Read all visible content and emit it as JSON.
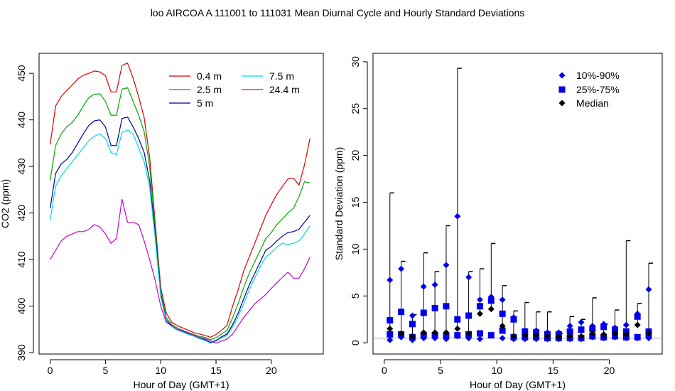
{
  "title": "loo   AIRCOA A   111001 to 111031   Mean Diurnal Cycle and Hourly Standard Deviations",
  "chart_data": [
    {
      "type": "line",
      "xlabel": "Hour of Day (GMT+1)",
      "ylabel": "CO2 (ppm)",
      "xlim": [
        -1.0,
        24.7
      ],
      "ylim": [
        389.7,
        454.3
      ],
      "xticks": [
        0,
        5,
        10,
        15,
        20
      ],
      "yticks": [
        390,
        400,
        410,
        420,
        430,
        440,
        450
      ],
      "legend_position": "top-right",
      "series": [
        {
          "name": "0.4 m",
          "color": "#dd0000",
          "x": [
            0,
            0.5,
            1,
            1.5,
            2,
            2.5,
            3,
            3.5,
            4,
            4.5,
            5,
            5.5,
            6,
            6.5,
            7,
            7.5,
            8,
            8.5,
            9,
            9.5,
            10,
            10.5,
            11,
            11.5,
            12,
            12.5,
            13,
            13.5,
            14,
            14.5,
            15,
            15.5,
            16,
            16.5,
            17,
            17.5,
            18,
            18.5,
            19,
            19.5,
            20,
            20.5,
            21,
            21.5,
            22,
            22.5,
            23,
            23.5
          ],
          "y": [
            434.7,
            443.0,
            445.0,
            446.3,
            447.5,
            448.8,
            449.6,
            450.0,
            450.5,
            450.3,
            449.5,
            446.0,
            446.0,
            451.7,
            452.2,
            449.0,
            445.0,
            440.5,
            432.0,
            418.0,
            404.0,
            398.5,
            396.5,
            395.8,
            395.3,
            394.8,
            394.3,
            394.0,
            393.7,
            393.3,
            393.9,
            394.8,
            395.9,
            400.0,
            403.5,
            407.5,
            410.5,
            413.5,
            416.5,
            419.5,
            421.8,
            424.0,
            425.7,
            427.3,
            427.5,
            426.0,
            430.3,
            436.0
          ]
        },
        {
          "name": "2.5 m",
          "color": "#00aa00",
          "x": [
            0,
            0.5,
            1,
            1.5,
            2,
            2.5,
            3,
            3.5,
            4,
            4.5,
            5,
            5.5,
            6,
            6.5,
            7,
            7.5,
            8,
            8.5,
            9,
            9.5,
            10,
            10.5,
            11,
            11.5,
            12,
            12.5,
            13,
            13.5,
            14,
            14.5,
            15,
            15.5,
            16,
            16.5,
            17,
            17.5,
            18,
            18.5,
            19,
            19.5,
            20,
            20.5,
            21,
            21.5,
            22,
            22.5,
            23,
            23.5
          ],
          "y": [
            427.0,
            434.5,
            437.0,
            438.5,
            439.5,
            441.0,
            443.0,
            444.8,
            445.5,
            445.6,
            444.0,
            441.0,
            441.0,
            446.6,
            446.9,
            444.0,
            441.0,
            437.5,
            430.0,
            417.0,
            403.0,
            397.5,
            396.0,
            395.3,
            394.8,
            394.3,
            393.9,
            393.5,
            393.3,
            392.8,
            393.2,
            394.0,
            394.8,
            397.5,
            400.5,
            404.0,
            407.0,
            409.5,
            412.0,
            414.5,
            415.8,
            417.5,
            418.7,
            420.0,
            421.0,
            423.5,
            426.7,
            426.5
          ]
        },
        {
          "name": "5 m",
          "color": "#000099",
          "x": [
            0,
            0.5,
            1,
            1.5,
            2,
            2.5,
            3,
            3.5,
            4,
            4.5,
            5,
            5.5,
            6,
            6.5,
            7,
            7.5,
            8,
            8.5,
            9,
            9.5,
            10,
            10.5,
            11,
            11.5,
            12,
            12.5,
            13,
            13.5,
            14,
            14.5,
            15,
            15.5,
            16,
            16.5,
            17,
            17.5,
            18,
            18.5,
            19,
            19.5,
            20,
            20.5,
            21,
            21.5,
            22,
            22.5,
            23,
            23.5
          ],
          "y": [
            421.0,
            428.5,
            430.5,
            431.5,
            433.0,
            435.0,
            437.0,
            438.8,
            439.8,
            440.0,
            438.5,
            434.5,
            434.5,
            440.3,
            440.6,
            438.5,
            436.0,
            433.0,
            427.0,
            415.5,
            402.5,
            397.0,
            395.8,
            395.0,
            394.6,
            394.1,
            393.7,
            393.2,
            392.8,
            392.2,
            392.6,
            393.4,
            394.0,
            396.0,
            398.5,
            401.5,
            404.5,
            407.0,
            409.5,
            412.0,
            412.8,
            414.0,
            415.0,
            415.8,
            416.0,
            416.5,
            418.0,
            419.5
          ]
        },
        {
          "name": "7.5 m",
          "color": "#00dddd",
          "x": [
            0,
            0.5,
            1,
            1.5,
            2,
            2.5,
            3,
            3.5,
            4,
            4.5,
            5,
            5.5,
            6,
            6.5,
            7,
            7.5,
            8,
            8.5,
            9,
            9.5,
            10,
            10.5,
            11,
            11.5,
            12,
            12.5,
            13,
            13.5,
            14,
            14.5,
            15,
            15.5,
            16,
            16.5,
            17,
            17.5,
            18,
            18.5,
            19,
            19.5,
            20,
            20.5,
            21,
            21.5,
            22,
            22.5,
            23,
            23.5
          ],
          "y": [
            418.5,
            425.8,
            428.0,
            429.5,
            431.0,
            432.5,
            434.0,
            435.5,
            436.5,
            437.0,
            436.0,
            433.0,
            432.5,
            437.3,
            437.8,
            437.0,
            434.0,
            431.0,
            425.5,
            414.5,
            402.0,
            396.8,
            395.6,
            394.8,
            394.4,
            393.9,
            393.5,
            393.0,
            392.6,
            392.0,
            392.4,
            393.2,
            393.7,
            395.5,
            397.8,
            400.5,
            403.5,
            406.0,
            408.5,
            410.5,
            411.5,
            412.7,
            413.5,
            413.2,
            413.5,
            414.0,
            415.5,
            417.3
          ]
        },
        {
          "name": "24.4 m",
          "color": "#cc00cc",
          "x": [
            0,
            0.5,
            1,
            1.5,
            2,
            2.5,
            3,
            3.5,
            4,
            4.5,
            5,
            5.5,
            6,
            6.5,
            7,
            7.5,
            8,
            8.5,
            9,
            9.5,
            10,
            10.5,
            11,
            11.5,
            12,
            12.5,
            13,
            13.5,
            14,
            14.5,
            15,
            15.5,
            16,
            16.5,
            17,
            17.5,
            18,
            18.5,
            19,
            19.5,
            20,
            20.5,
            21,
            21.5,
            22,
            22.5,
            23,
            23.5
          ],
          "y": [
            410.0,
            412.0,
            414.0,
            415.0,
            415.5,
            416.0,
            416.0,
            416.5,
            417.5,
            417.0,
            415.5,
            413.5,
            414.5,
            423.0,
            418.0,
            418.0,
            417.5,
            414.0,
            410.0,
            405.5,
            400.0,
            396.5,
            395.8,
            395.0,
            394.7,
            394.2,
            393.7,
            393.3,
            393.0,
            392.6,
            392.0,
            392.5,
            392.9,
            394.0,
            395.8,
            397.5,
            399.0,
            400.5,
            401.5,
            402.5,
            403.8,
            405.0,
            406.2,
            407.3,
            406.0,
            406.0,
            408.0,
            410.5
          ]
        }
      ]
    },
    {
      "type": "scatter",
      "xlabel": "Hour of Day (GMT+1)",
      "ylabel": "Standard Deviation (ppm)",
      "xlim": [
        -1.0,
        24.7
      ],
      "ylim": [
        -1.2,
        30.9
      ],
      "xticks": [
        0,
        5,
        10,
        15,
        20
      ],
      "yticks": [
        0,
        5,
        10,
        15,
        20,
        25,
        30
      ],
      "legend_position": "top-right",
      "reference_line": 0.5,
      "x": [
        0.5,
        1.5,
        2.5,
        3.5,
        4.5,
        5.5,
        6.5,
        7.5,
        8.5,
        9.5,
        10.5,
        11.5,
        12.5,
        13.5,
        14.5,
        15.5,
        16.5,
        17.5,
        18.5,
        19.5,
        20.5,
        21.5,
        22.5,
        23.5
      ],
      "series": [
        {
          "name": "10%-90%",
          "marker": "diamond",
          "color": "#0000ee",
          "low": [
            0.3,
            0.6,
            0.3,
            0.5,
            0.5,
            0.4,
            0.7,
            0.5,
            0.4,
            0.8,
            0.5,
            0.4,
            0.4,
            0.4,
            0.4,
            0.4,
            0.4,
            0.4,
            0.6,
            0.5,
            0.6,
            0.5,
            0.5,
            0.5
          ],
          "high": [
            6.7,
            7.9,
            2.9,
            6.0,
            6.2,
            8.3,
            13.5,
            7.0,
            4.6,
            4.9,
            4.6,
            2.7,
            1.3,
            1.3,
            1.1,
            1.1,
            1.8,
            2.2,
            1.8,
            2.0,
            1.6,
            1.9,
            3.1,
            5.7
          ]
        },
        {
          "name": "25%-75%",
          "marker": "square",
          "color": "#0000ee",
          "low": [
            0.9,
            0.9,
            0.6,
            0.8,
            0.8,
            0.8,
            0.8,
            0.9,
            1.0,
            0.8,
            1.3,
            0.6,
            0.6,
            0.6,
            0.5,
            0.5,
            0.5,
            0.5,
            0.7,
            0.6,
            0.7,
            0.6,
            0.6,
            0.8
          ],
          "high": [
            2.4,
            3.3,
            2.0,
            3.2,
            3.7,
            3.9,
            2.5,
            2.9,
            3.9,
            4.5,
            3.1,
            2.5,
            1.2,
            1.1,
            0.9,
            0.9,
            1.2,
            1.4,
            1.5,
            1.7,
            1.4,
            1.2,
            2.8,
            1.2
          ]
        },
        {
          "name": "Median",
          "marker": "diamond",
          "color": "#000000",
          "values": [
            1.5,
            1.0,
            0.7,
            1.1,
            1.1,
            1.1,
            1.5,
            1.0,
            3.1,
            3.6,
            1.8,
            0.7,
            0.8,
            0.8,
            0.7,
            0.6,
            0.7,
            0.7,
            1.0,
            0.9,
            1.0,
            0.9,
            1.9,
            1.0
          ]
        },
        {
          "name": "error-bar-max",
          "color": "#000000",
          "values": [
            16.0,
            8.7,
            3.0,
            9.6,
            7.6,
            12.5,
            29.3,
            7.6,
            7.9,
            10.6,
            6.1,
            3.4,
            4.3,
            3.3,
            3.3,
            1.0,
            2.8,
            2.5,
            4.8,
            2.0,
            3.5,
            10.9,
            4.2,
            8.5
          ]
        }
      ]
    }
  ]
}
